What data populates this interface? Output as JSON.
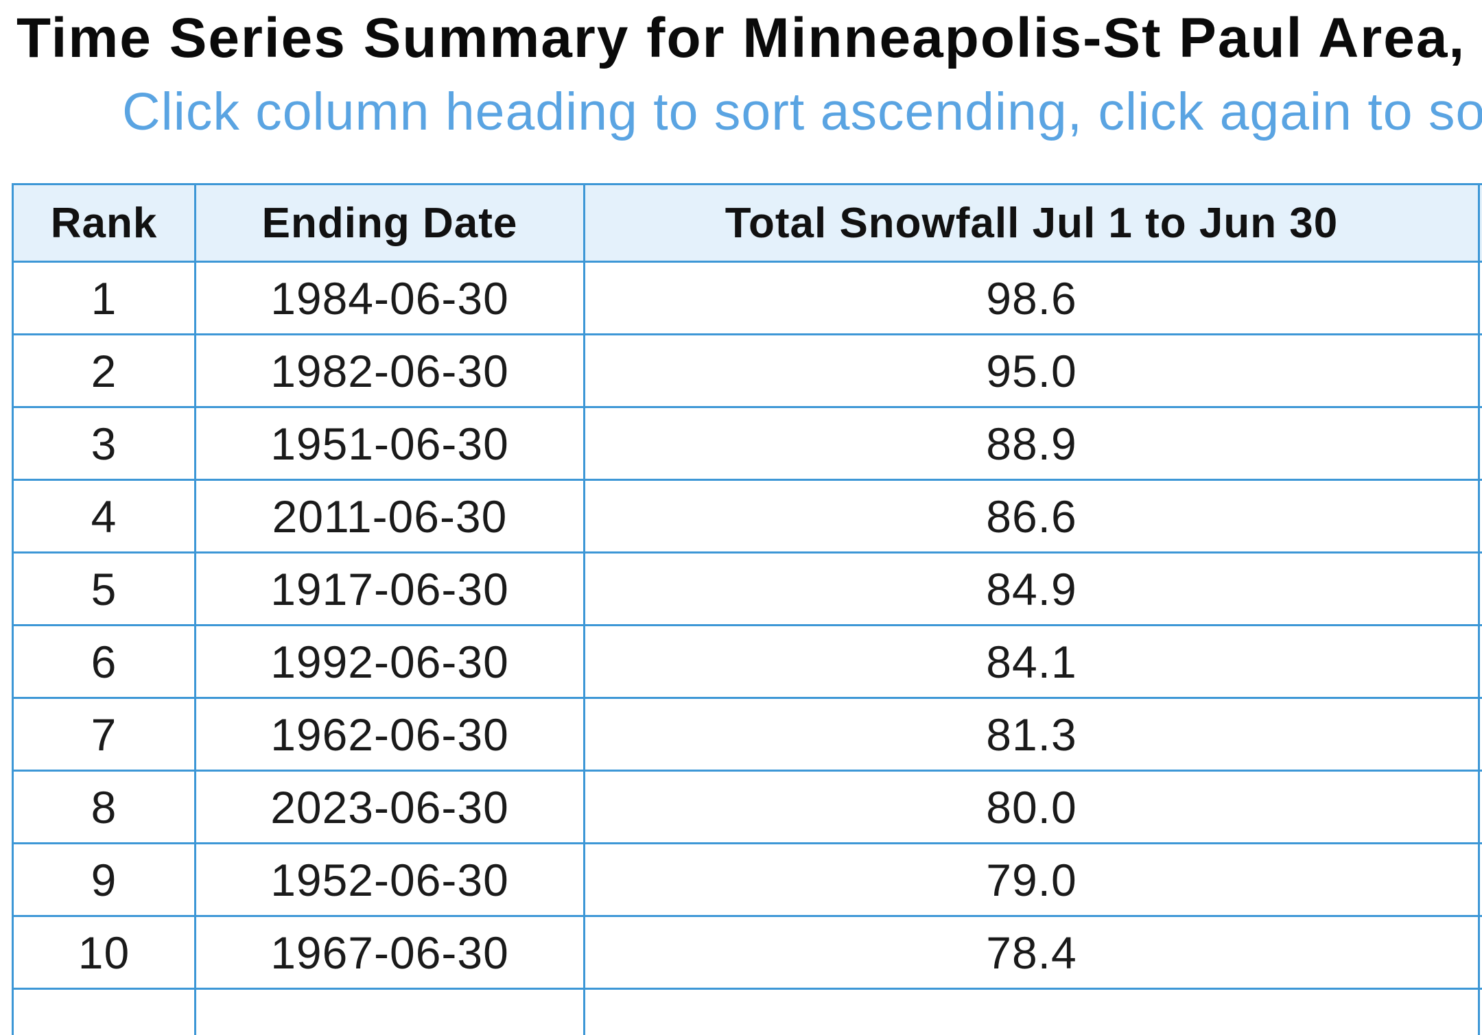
{
  "page": {
    "title": "Time Series Summary for Minneapolis-St Paul Area,",
    "instructions": "Click column heading to sort ascending, click again to so"
  },
  "table": {
    "headers": [
      "Rank",
      "Ending Date",
      "Total Snowfall Jul 1 to Jun 30",
      ""
    ],
    "rows": [
      [
        "1",
        "1984-06-30",
        "98.6"
      ],
      [
        "2",
        "1982-06-30",
        "95.0"
      ],
      [
        "3",
        "1951-06-30",
        "88.9"
      ],
      [
        "4",
        "2011-06-30",
        "86.6"
      ],
      [
        "5",
        "1917-06-30",
        "84.9"
      ],
      [
        "6",
        "1992-06-30",
        "84.1"
      ],
      [
        "7",
        "1962-06-30",
        "81.3"
      ],
      [
        "8",
        "2023-06-30",
        "80.0"
      ],
      [
        "9",
        "1952-06-30",
        "79.0"
      ],
      [
        "10",
        "1967-06-30",
        "78.4"
      ],
      [
        "",
        "",
        ""
      ]
    ]
  },
  "colors": {
    "instructions_text": "#5aa4e2",
    "table_border": "#3d97d6",
    "header_background": "#e4f1fb"
  }
}
